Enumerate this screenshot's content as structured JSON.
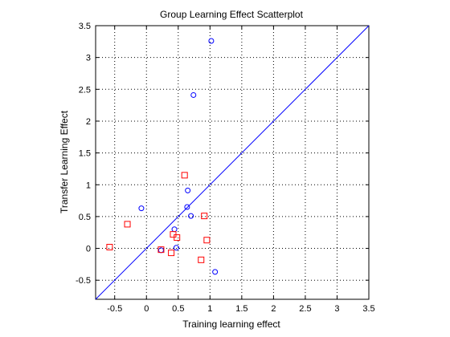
{
  "chart_data": {
    "type": "scatter",
    "title": "Group Learning Effect Scatterplot",
    "xlabel": "Training learning effect",
    "ylabel": "Transfer Learning Effect",
    "xlim": [
      -0.8,
      3.5
    ],
    "ylim": [
      -0.8,
      3.5
    ],
    "xticks": [
      "-0.5",
      "0",
      "0.5",
      "1",
      "1.5",
      "2",
      "2.5",
      "3",
      "3.5"
    ],
    "yticks": [
      "-0.5",
      "0",
      "0.5",
      "1",
      "1.5",
      "2",
      "2.5",
      "3",
      "3.5"
    ],
    "xtick_values": [
      -0.5,
      0,
      0.5,
      1,
      1.5,
      2,
      2.5,
      3,
      3.5
    ],
    "ytick_values": [
      -0.5,
      0,
      0.5,
      1,
      1.5,
      2,
      2.5,
      3,
      3.5
    ],
    "grid": true,
    "series": [
      {
        "marker": "circle",
        "color": "#0000ff",
        "points": [
          [
            -0.08,
            0.63
          ],
          [
            0.23,
            -0.03
          ],
          [
            0.44,
            0.3
          ],
          [
            0.47,
            0.01
          ],
          [
            0.64,
            0.65
          ],
          [
            0.65,
            0.91
          ],
          [
            0.7,
            0.51
          ],
          [
            0.74,
            2.41
          ],
          [
            1.02,
            3.26
          ],
          [
            1.08,
            -0.37
          ]
        ]
      },
      {
        "marker": "square",
        "color": "#ff0000",
        "points": [
          [
            -0.58,
            0.02
          ],
          [
            -0.3,
            0.38
          ],
          [
            0.23,
            -0.02
          ],
          [
            0.39,
            -0.07
          ],
          [
            0.42,
            0.22
          ],
          [
            0.48,
            0.17
          ],
          [
            0.6,
            1.15
          ],
          [
            0.86,
            -0.18
          ],
          [
            0.91,
            0.51
          ],
          [
            0.95,
            0.13
          ]
        ]
      }
    ],
    "reference_line": {
      "x": [
        -0.8,
        3.5
      ],
      "y": [
        -0.8,
        3.5
      ],
      "color": "#0000ff"
    }
  }
}
